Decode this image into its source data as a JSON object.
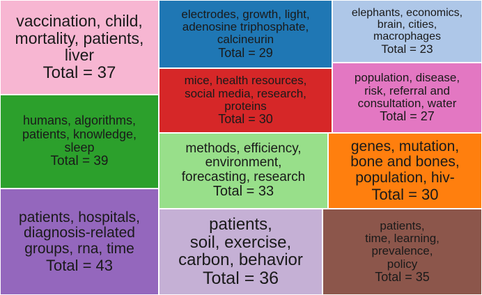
{
  "chart_data": {
    "type": "treemap",
    "total_label_prefix": "Total = ",
    "tiles": [
      {
        "label_lines": [
          "vaccination, child,",
          "mortality, patients,",
          "liver"
        ],
        "value": 37,
        "color": "#f7b6d2"
      },
      {
        "label_lines": [
          "electrodes, growth, light,",
          "adenosine triphosphate,",
          "calcineurin"
        ],
        "value": 29,
        "color": "#1f77b4"
      },
      {
        "label_lines": [
          "elephants, economics,",
          "brain, cities,",
          "macrophages"
        ],
        "value": 23,
        "color": "#aec7e8"
      },
      {
        "label_lines": [
          "mice, health resources,",
          "social media, research,",
          "proteins"
        ],
        "value": 30,
        "color": "#d62728"
      },
      {
        "label_lines": [
          "population, disease,",
          "risk, referral and",
          "consultation, water"
        ],
        "value": 27,
        "color": "#e377c2"
      },
      {
        "label_lines": [
          "humans, algorithms,",
          "patients, knowledge,",
          "sleep"
        ],
        "value": 39,
        "color": "#2ca02c"
      },
      {
        "label_lines": [
          "methods, efficiency,",
          "environment,",
          "forecasting, research"
        ],
        "value": 33,
        "color": "#98df8a"
      },
      {
        "label_lines": [
          "genes, mutation,",
          "bone and bones,",
          "population, hiv-"
        ],
        "value": 30,
        "color": "#ff7f0e"
      },
      {
        "label_lines": [
          "patients, hospitals,",
          "diagnosis-related",
          "groups, rna, time"
        ],
        "value": 43,
        "color": "#9467bd"
      },
      {
        "label_lines": [
          "patients,",
          "soil, exercise,",
          "carbon, behavior"
        ],
        "value": 36,
        "color": "#c5b0d5"
      },
      {
        "label_lines": [
          "patients,",
          "time, learning,",
          "prevalence,",
          "policy"
        ],
        "value": 35,
        "color": "#8c564b"
      }
    ]
  }
}
